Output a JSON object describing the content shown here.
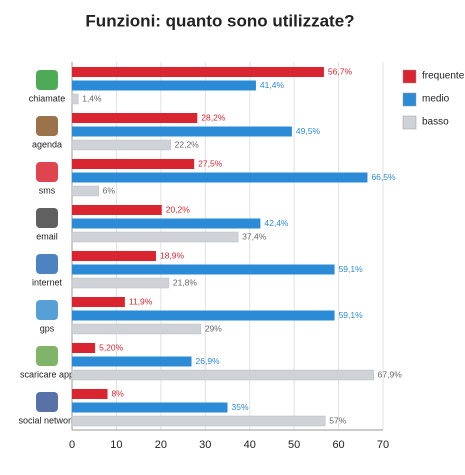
{
  "chart_data": {
    "type": "hbar",
    "title": "Funzioni: quanto sono utilizzate?",
    "categories": [
      "chiamate",
      "agenda",
      "sms",
      "email",
      "internet",
      "gps",
      "scaricare app",
      "social network"
    ],
    "series": [
      {
        "name": "frequente",
        "color": "#d9252f",
        "values": [
          56.7,
          28.2,
          27.5,
          20.2,
          18.9,
          11.9,
          5.2,
          8
        ],
        "value_labels": [
          "56,7%",
          "28,2%",
          "27,5%",
          "20,2%",
          "18,9%",
          "11,9%",
          "5,20%",
          "8%"
        ]
      },
      {
        "name": "medio",
        "color": "#2b8bd6",
        "values": [
          41.4,
          49.5,
          66.5,
          42.4,
          59.1,
          59.1,
          26.9,
          35
        ],
        "value_labels": [
          "41,4%",
          "49,5%",
          "66,5%",
          "42,4%",
          "59,1%",
          "59,1%",
          "26,9%",
          "35%"
        ]
      },
      {
        "name": "basso",
        "color": "#cfd3d7",
        "values": [
          1.4,
          22.2,
          6,
          37.4,
          21.8,
          29,
          67.9,
          57
        ],
        "value_labels": [
          "1,4%",
          "22,2%",
          "6%",
          "37,4%",
          "21,8%",
          "29%",
          "67,9%",
          "57%"
        ]
      }
    ],
    "xlim": [
      0,
      70
    ],
    "xticks": [
      0,
      10,
      20,
      30,
      40,
      50,
      60,
      70
    ],
    "grid": true,
    "legend": "right"
  }
}
